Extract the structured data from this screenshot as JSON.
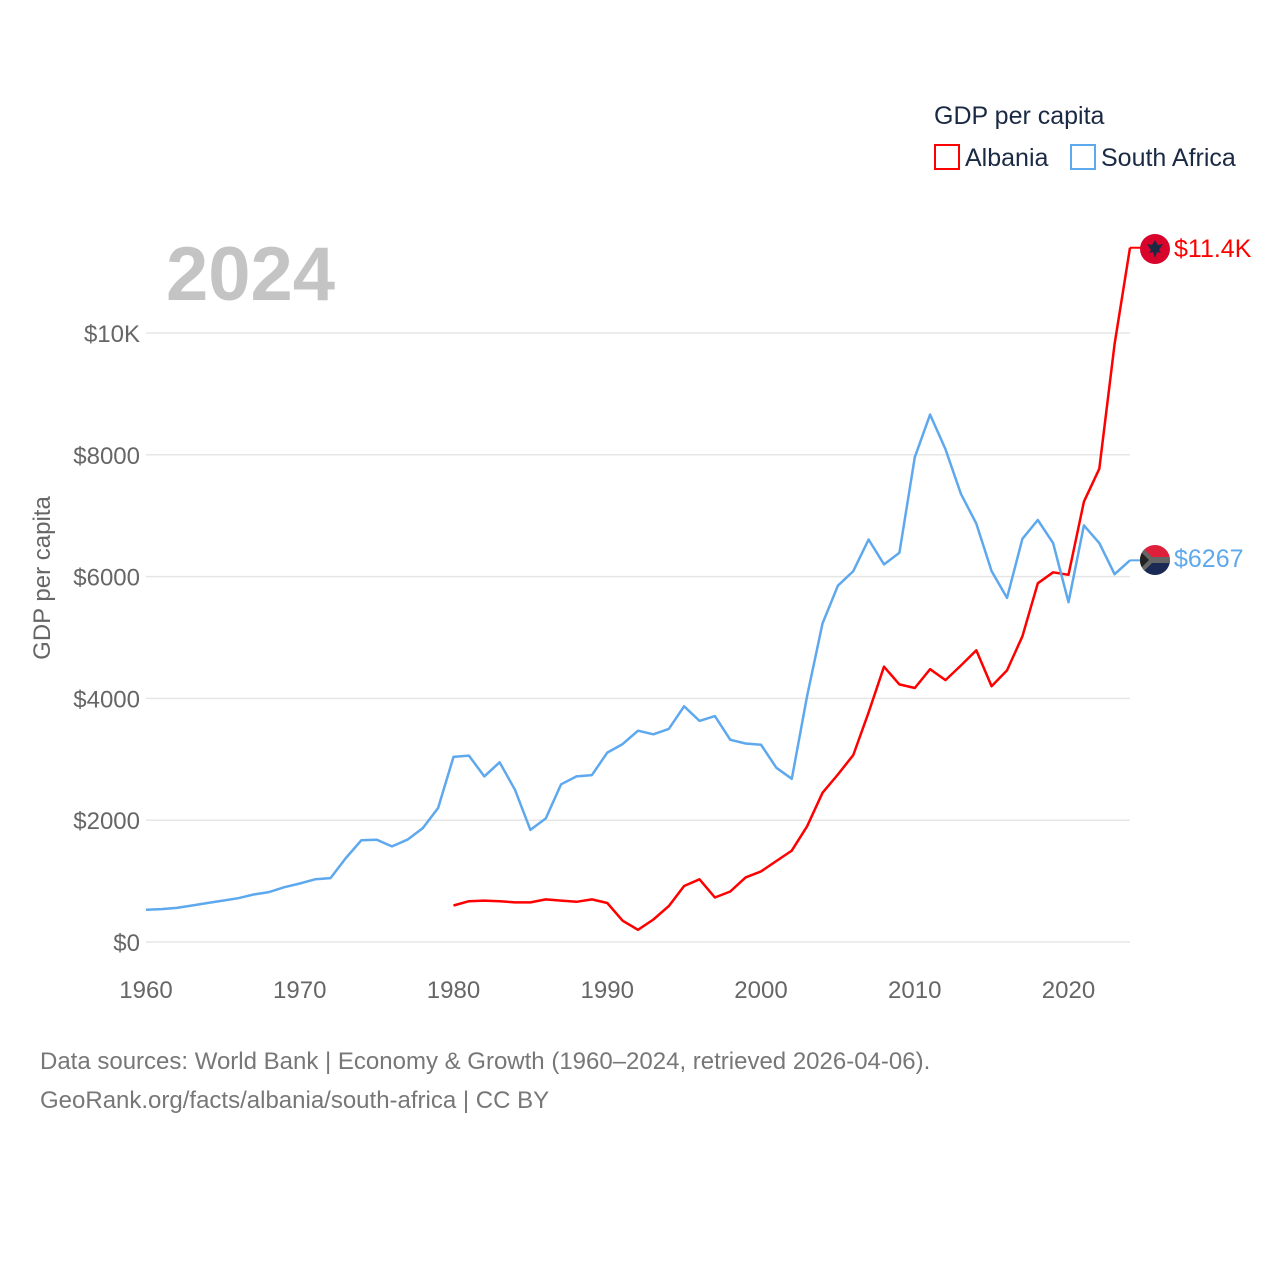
{
  "chart_data": {
    "type": "line",
    "title": "GDP per capita",
    "ylabel": "GDP per capita",
    "xlabel": "",
    "year_label": "2024",
    "xlim": [
      1960,
      2024
    ],
    "ylim": [
      0,
      10000
    ],
    "x_ticks": [
      1960,
      1970,
      1980,
      1990,
      2000,
      2010,
      2020
    ],
    "y_ticks": [
      0,
      2000,
      4000,
      6000,
      8000,
      10000
    ],
    "y_tick_labels": [
      "$0",
      "$2000",
      "$4000",
      "$6000",
      "$8000",
      "$10K"
    ],
    "grid": true,
    "legend_position": "top-right",
    "series": [
      {
        "name": "Albania",
        "color": "#ff0000",
        "end_label": "$11.4K",
        "flag": "albania-flag",
        "start_year": 1980,
        "values": [
          600,
          670,
          680,
          670,
          650,
          650,
          700,
          680,
          660,
          700,
          640,
          350,
          200,
          370,
          590,
          920,
          1030,
          730,
          830,
          1060,
          1160,
          1330,
          1500,
          1900,
          2450,
          2750,
          3070,
          3770,
          4520,
          4230,
          4170,
          4480,
          4300,
          4540,
          4790,
          4200,
          4460,
          5020,
          5890,
          6070,
          6030,
          7230,
          7770,
          9820,
          11400
        ]
      },
      {
        "name": "South Africa",
        "color": "#5ea8ee",
        "end_label": "$6267",
        "flag": "south-africa-flag",
        "start_year": 1960,
        "values": [
          530,
          540,
          560,
          600,
          640,
          680,
          720,
          780,
          820,
          900,
          960,
          1030,
          1050,
          1380,
          1670,
          1680,
          1570,
          1680,
          1870,
          2200,
          3040,
          3060,
          2720,
          2950,
          2500,
          1840,
          2030,
          2590,
          2720,
          2740,
          3110,
          3250,
          3470,
          3410,
          3500,
          3870,
          3630,
          3710,
          3320,
          3260,
          3240,
          2860,
          2680,
          4040,
          5230,
          5850,
          6090,
          6610,
          6200,
          6390,
          7960,
          8660,
          8090,
          7360,
          6870,
          6090,
          5650,
          6620,
          6930,
          6550,
          5580,
          6840,
          6550,
          6040,
          6267
        ]
      }
    ]
  },
  "footer": {
    "line1": "Data sources: World Bank | Economy & Growth (1960–2024, retrieved 2026-04-06).",
    "line2": "GeoRank.org/facts/albania/south-africa | CC BY"
  }
}
